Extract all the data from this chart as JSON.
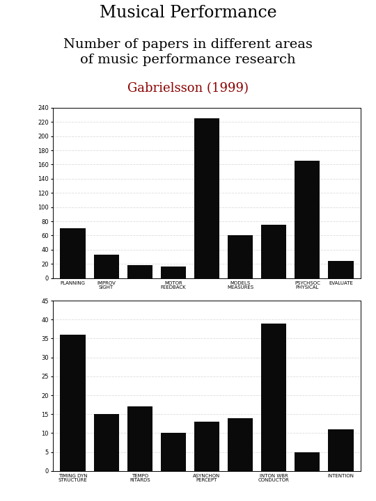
{
  "chart1": {
    "bar_values": [
      70,
      33,
      18,
      16,
      225,
      60,
      75,
      165,
      24
    ],
    "bar_labels": [
      "PLANNING\n",
      "IMPROV\nSIGHT",
      "",
      "MOTOR\nFEEDBACK",
      "",
      "MODELS\nMEASURES",
      "",
      "PSYCHSOC\nPHYSICAL",
      "EVALUATE\n"
    ],
    "ylim": [
      0,
      240
    ],
    "yticks": [
      0,
      20,
      40,
      60,
      80,
      100,
      120,
      140,
      160,
      180,
      200,
      220,
      240
    ]
  },
  "chart2": {
    "bar_values": [
      36,
      15,
      17,
      10,
      13,
      14,
      39,
      5,
      11
    ],
    "bar_labels": [
      "TIMING DYN\nSTRUCTURE",
      "",
      "TEMPO\nRITARDS",
      "",
      "ASYNCHON\nPERCEPT",
      "",
      "INTON WBR\nCONDUCTOR",
      "",
      "INTENTION\n"
    ],
    "ylim": [
      0,
      45
    ],
    "yticks": [
      0,
      5,
      10,
      15,
      20,
      25,
      30,
      35,
      40,
      45
    ]
  },
  "bg_color": "#ffffff",
  "bar_color": "#0a0a0a",
  "title": "Musical Performance",
  "subtitle": "Number of papers in different areas\nof music performance research",
  "attribution": "Gabrielsson (1999)",
  "title_fontsize": 17,
  "subtitle_fontsize": 14,
  "attribution_fontsize": 13,
  "grid_color": "#cccccc",
  "grid_linestyle": "--",
  "grid_alpha": 0.7
}
